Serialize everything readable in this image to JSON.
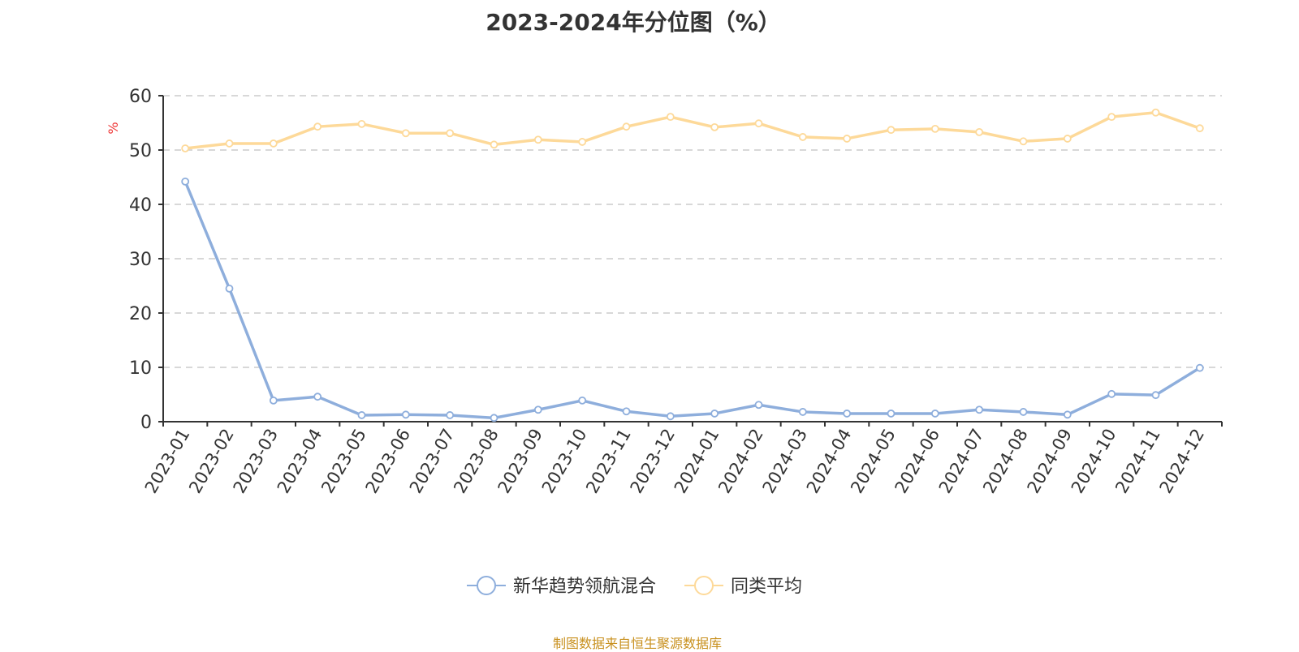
{
  "chart_data": {
    "type": "line",
    "title": "2023-2024年分位图（%）",
    "ylabel": "%",
    "ylim": [
      0,
      60
    ],
    "yticks": [
      0,
      10,
      20,
      30,
      40,
      50,
      60
    ],
    "grid": true,
    "legend_position": "bottom",
    "categories": [
      "2023-01",
      "2023-02",
      "2023-03",
      "2023-04",
      "2023-05",
      "2023-06",
      "2023-07",
      "2023-08",
      "2023-09",
      "2023-10",
      "2023-11",
      "2023-12",
      "2024-01",
      "2024-02",
      "2024-03",
      "2024-04",
      "2024-05",
      "2024-06",
      "2024-07",
      "2024-08",
      "2024-09",
      "2024-10",
      "2024-11",
      "2024-12"
    ],
    "series": [
      {
        "name": "新华趋势领航混合",
        "color": "#8eaedc",
        "values": [
          44.2,
          24.5,
          3.9,
          4.6,
          1.2,
          1.3,
          1.2,
          0.7,
          2.2,
          3.9,
          1.9,
          1.0,
          1.5,
          3.1,
          1.8,
          1.5,
          1.5,
          1.5,
          2.2,
          1.8,
          1.3,
          5.1,
          4.9,
          9.9
        ]
      },
      {
        "name": "同类平均",
        "color": "#fdd999",
        "values": [
          50.3,
          51.2,
          51.2,
          54.3,
          54.8,
          53.1,
          53.1,
          51.0,
          51.9,
          51.5,
          54.3,
          56.1,
          54.2,
          54.9,
          52.4,
          52.1,
          53.7,
          53.9,
          53.3,
          51.6,
          52.1,
          56.1,
          56.9,
          54.0
        ]
      }
    ]
  },
  "footer": "制图数据来自恒生聚源数据库"
}
